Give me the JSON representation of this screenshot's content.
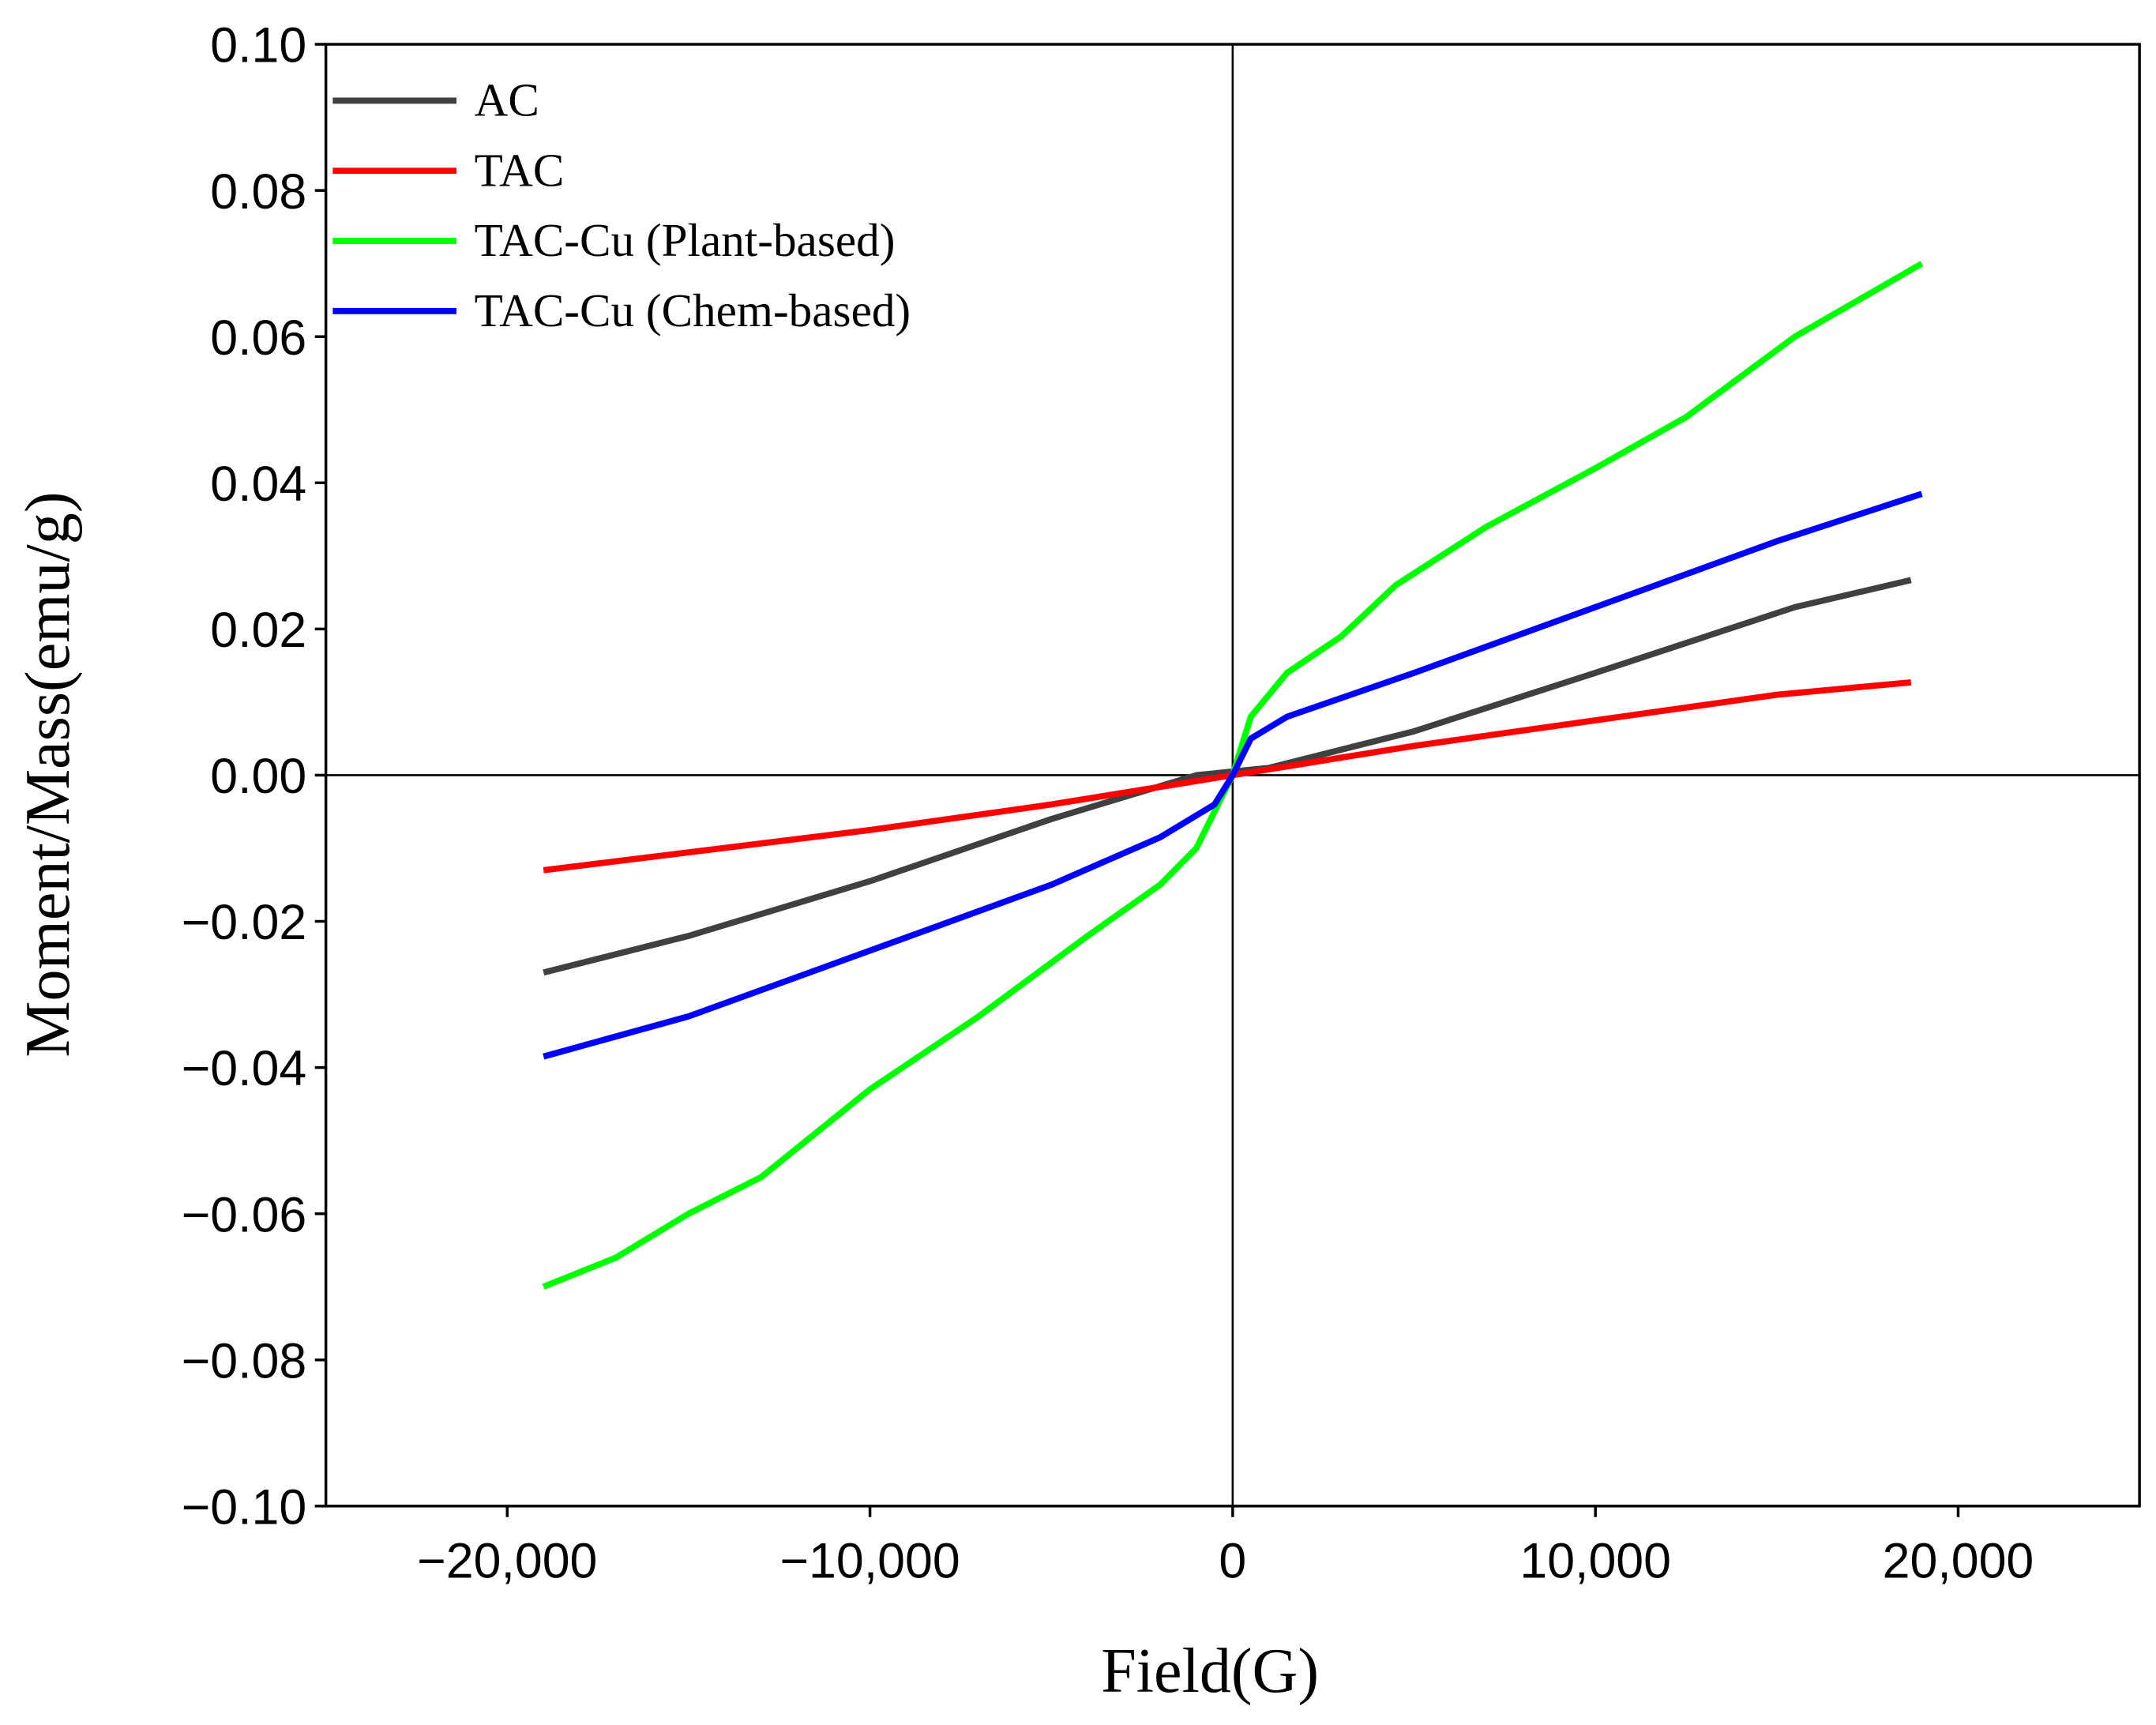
{
  "chart_data": {
    "type": "line",
    "x_label": "Field(G)",
    "y_label": "Moment/Mass(emu/g)",
    "xlim": [
      -25000,
      25000
    ],
    "ylim": [
      -0.1,
      0.1
    ],
    "xticks": [
      {
        "value": -20000,
        "label": "−20,000"
      },
      {
        "value": -10000,
        "label": "−10,000"
      },
      0,
      {
        "value": 10000,
        "label": "10,000"
      },
      {
        "value": 20000,
        "label": "20,000"
      }
    ],
    "yticks": [
      {
        "value": -0.1,
        "label": "−0.10"
      },
      {
        "value": -0.08,
        "label": "−0.08"
      },
      {
        "value": -0.06,
        "label": "−0.06"
      },
      {
        "value": -0.04,
        "label": "−0.04"
      },
      {
        "value": -0.02,
        "label": "−0.02"
      },
      {
        "value": 0,
        "label": "0.00"
      },
      {
        "value": 0.02,
        "label": "0.02"
      },
      {
        "value": 0.04,
        "label": "0.04"
      },
      {
        "value": 0.06,
        "label": "0.06"
      },
      {
        "value": 0.08,
        "label": "0.08"
      },
      {
        "value": 0.1,
        "label": "0.10"
      }
    ],
    "grid": false,
    "legend": "upper left",
    "series": [
      {
        "name": "AC",
        "color": "#404040",
        "x": [
          -19000,
          -15000,
          -10000,
          -5000,
          -1000,
          0,
          1000,
          5000,
          10000,
          15500,
          18700
        ],
        "values": [
          -0.027,
          -0.022,
          -0.0145,
          -0.006,
          0.0,
          0.0005,
          0.001,
          0.006,
          0.014,
          0.023,
          0.0267
        ]
      },
      {
        "name": "TAC",
        "color": "#ff0000",
        "x": [
          -19000,
          -10000,
          -5000,
          0,
          5000,
          10000,
          15000,
          18700
        ],
        "values": [
          -0.013,
          -0.0075,
          -0.004,
          0.0,
          0.004,
          0.0075,
          0.011,
          0.0127
        ]
      },
      {
        "name": "TAC-Cu (Plant-based)",
        "color": "#00ff00",
        "x": [
          -19000,
          -17000,
          -15000,
          -13000,
          -10000,
          -7000,
          -4000,
          -2000,
          -1000,
          0,
          500,
          1500,
          3000,
          4500,
          7000,
          10000,
          12500,
          15500,
          19000
        ],
        "values": [
          -0.07,
          -0.066,
          -0.06,
          -0.055,
          -0.043,
          -0.033,
          -0.022,
          -0.015,
          -0.01,
          0.0,
          0.008,
          0.014,
          0.019,
          0.026,
          0.034,
          0.042,
          0.049,
          0.06,
          0.07
        ]
      },
      {
        "name": "TAC-Cu (Chem-based)",
        "color": "#0000ff",
        "x": [
          -19000,
          -15000,
          -10000,
          -5000,
          -2000,
          -500,
          0,
          500,
          1500,
          5000,
          10000,
          15000,
          19000
        ],
        "values": [
          -0.0385,
          -0.033,
          -0.024,
          -0.015,
          -0.0085,
          -0.004,
          0.0,
          0.005,
          0.008,
          0.014,
          0.023,
          0.032,
          0.0385
        ]
      }
    ]
  }
}
